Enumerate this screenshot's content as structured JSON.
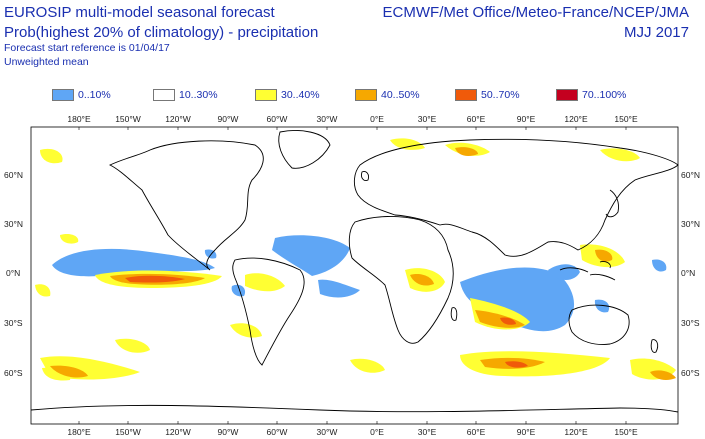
{
  "header": {
    "title_line1": "EUROSIP multi-model seasonal forecast",
    "title_line2": "Prob(highest 20% of climatology) - precipitation",
    "forecast_start": "Forecast start reference is 01/04/17",
    "weighting": "Unweighted mean",
    "centres": "ECMWF/Met Office/Meteo-France/NCEP/JMA",
    "season": "MJJ 2017"
  },
  "legend": [
    {
      "label": "0..10%",
      "color": "#5fa6f5"
    },
    {
      "label": "10..30%",
      "color": "#ffffff"
    },
    {
      "label": "30..40%",
      "color": "#ffff33"
    },
    {
      "label": "40..50%",
      "color": "#f6a800"
    },
    {
      "label": "50..70%",
      "color": "#f05a0a"
    },
    {
      "label": "70..100%",
      "color": "#c4001f"
    }
  ],
  "axes": {
    "lon_labels": [
      "180°E",
      "150°W",
      "120°W",
      "90°W",
      "60°W",
      "30°W",
      "0°E",
      "30°E",
      "60°E",
      "90°E",
      "120°E",
      "150°E"
    ],
    "lat_labels": [
      "60°N",
      "30°N",
      "0°N",
      "30°S",
      "60°S"
    ]
  }
}
